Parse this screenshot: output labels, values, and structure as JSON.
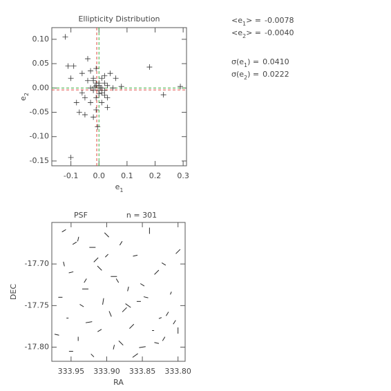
{
  "chart_data": [
    {
      "type": "scatter",
      "title": "Ellipticity Distribution",
      "x_label": {
        "text": "e",
        "sub": "1"
      },
      "y_label": {
        "text": "e",
        "sub": "2"
      },
      "xlim": [
        -0.168,
        0.312
      ],
      "ylim": [
        -0.16,
        0.124
      ],
      "xticks": [
        {
          "value": -0.1,
          "label": "-0.1"
        },
        {
          "value": 0,
          "label": "0.0"
        },
        0.1,
        0.2,
        0.3
      ],
      "yticks": [
        {
          "value": 0.1,
          "label": "0.10"
        },
        0.05,
        {
          "value": 0,
          "label": "0.00"
        },
        -0.05,
        {
          "value": -0.1,
          "label": "-0.10"
        },
        -0.15
      ],
      "color": "#333333",
      "mean_color": "#e0443c",
      "zero_color": "#3fae3f",
      "x": [
        -0.12,
        -0.11,
        -0.09,
        -0.1,
        -0.1,
        -0.07,
        -0.06,
        -0.05,
        -0.04,
        -0.03,
        -0.03,
        -0.02,
        -0.02,
        -0.02,
        -0.01,
        -0.01,
        -0.01,
        0,
        0,
        -0.005,
        0.01,
        0.01,
        0.01,
        0.02,
        0.02,
        0.03,
        0.03,
        0.04,
        0.05,
        0.06,
        0.08,
        0.18,
        0.23,
        0.29,
        -0.03,
        -0.02,
        -0.01,
        0,
        0.01,
        0.02,
        -0.04,
        -0.05,
        -0.08,
        0.03,
        0.02,
        -0.01,
        0.005,
        -0.015,
        0,
        -0.06
      ],
      "y": [
        0.105,
        0.045,
        0.045,
        0.02,
        -0.143,
        -0.05,
        0.03,
        -0.055,
        0.06,
        0.035,
        -0.03,
        0.02,
        -0.06,
        0.015,
        0.005,
        -0.02,
        0.04,
        -0.005,
        0.01,
        -0.08,
        0.02,
        -0.03,
        0,
        0.01,
        -0.015,
        0.005,
        -0.04,
        0.03,
        0,
        0.02,
        0.003,
        0.043,
        -0.014,
        0.003,
        0,
        -0.005,
        0.01,
        0.005,
        -0.01,
        -0.005,
        0.015,
        -0.02,
        -0.03,
        -0.02,
        0.025,
        -0.045,
        0,
        0.002,
        -0.012,
        -0.01
      ],
      "stats": [
        {
          "label": "<e",
          "sub": "1",
          "suffix": "> =",
          "value": -0.0078,
          "value_label": "-0.0078"
        },
        {
          "label": "<e",
          "sub": "2",
          "suffix": "> =",
          "value": -0.004,
          "value_label": "-0.0040"
        },
        {
          "label": "σ(e",
          "sub": "1",
          "suffix": ") =",
          "value": 0.041,
          "value_label": "0.0410"
        },
        {
          "label": "σ(e",
          "sub": "2",
          "suffix": ") =",
          "value": 0.0222,
          "value_label": "0.0222"
        }
      ]
    },
    {
      "type": "vector",
      "title": "PSF",
      "subtitle": "n = 301",
      "x_label": {
        "text": "RA"
      },
      "y_label": {
        "text": "DEC"
      },
      "xlim": [
        333.977,
        333.79
      ],
      "ylim": [
        -17.817,
        -17.65
      ],
      "xticks": [
        333.95,
        {
          "value": 333.9,
          "label": "333.90"
        },
        333.85,
        {
          "value": 333.8,
          "label": "333.80"
        }
      ],
      "yticks": [
        {
          "value": -17.7,
          "label": "-17.70"
        },
        -17.75,
        {
          "value": -17.8,
          "label": "-17.80"
        }
      ],
      "color": "#222222",
      "x": [
        333.96,
        333.94,
        333.92,
        333.9,
        333.88,
        333.86,
        333.84,
        333.82,
        333.8,
        333.95,
        333.93,
        333.91,
        333.89,
        333.87,
        333.85,
        333.83,
        333.81,
        333.965,
        333.935,
        333.905,
        333.875,
        333.845,
        333.815,
        333.955,
        333.925,
        333.895,
        333.865,
        333.835,
        333.805,
        333.97,
        333.94,
        333.91,
        333.88,
        333.85,
        333.82,
        333.95,
        333.92,
        333.89,
        333.86,
        333.83,
        333.8,
        333.945,
        333.915,
        333.885,
        333.855,
        333.825,
        333.96,
        333.93,
        333.9,
        333.87
      ],
      "y": [
        -17.66,
        -17.67,
        -17.68,
        -17.665,
        -17.675,
        -17.69,
        -17.66,
        -17.7,
        -17.685,
        -17.71,
        -17.72,
        -17.705,
        -17.715,
        -17.73,
        -17.725,
        -17.71,
        -17.735,
        -17.74,
        -17.75,
        -17.745,
        -17.755,
        -17.74,
        -17.76,
        -17.765,
        -17.77,
        -17.76,
        -17.775,
        -17.78,
        -17.77,
        -17.785,
        -17.79,
        -17.78,
        -17.795,
        -17.8,
        -17.79,
        -17.805,
        -17.81,
        -17.8,
        -17.81,
        -17.795,
        -17.78,
        -17.675,
        -17.695,
        -17.72,
        -17.745,
        -17.765,
        -17.7,
        -17.73,
        -17.69,
        -17.75
      ],
      "e1": [
        0.01,
        -0.02,
        0.03,
        0,
        -0.01,
        0.02,
        -0.03,
        0.01,
        0,
        0.02,
        -0.01,
        0,
        0.03,
        -0.02,
        0.01,
        0,
        -0.01,
        0.02,
        0.01,
        -0.03,
        0,
        0.02,
        -0.01,
        0.01,
        0.03,
        -0.02,
        0,
        0.01,
        -0.01,
        0.02,
        -0.02,
        0.01,
        0,
        0.03,
        -0.01,
        0.02,
        0,
        -0.02,
        0.01,
        0.02,
        -0.03,
        0.01,
        0,
        -0.01,
        0.02,
        0.01,
        -0.02,
        0.03,
        0,
        0.01
      ],
      "e2": [
        0.02,
        0.01,
        0,
        -0.03,
        0.02,
        0.01,
        0,
        -0.02,
        0.03,
        0.01,
        0.02,
        -0.03,
        0,
        0.01,
        -0.02,
        0.03,
        0.01,
        0,
        -0.02,
        0.01,
        0.03,
        -0.01,
        0.02,
        0,
        0.01,
        -0.02,
        0.03,
        0,
        0.02,
        -0.01,
        0,
        0.02,
        -0.03,
        0.01,
        0.02,
        0,
        -0.02,
        0.01,
        0.03,
        -0.01,
        0,
        0.02,
        0.03,
        -0.02,
        0,
        0.01,
        -0.01,
        0,
        0.02,
        -0.03
      ]
    }
  ]
}
